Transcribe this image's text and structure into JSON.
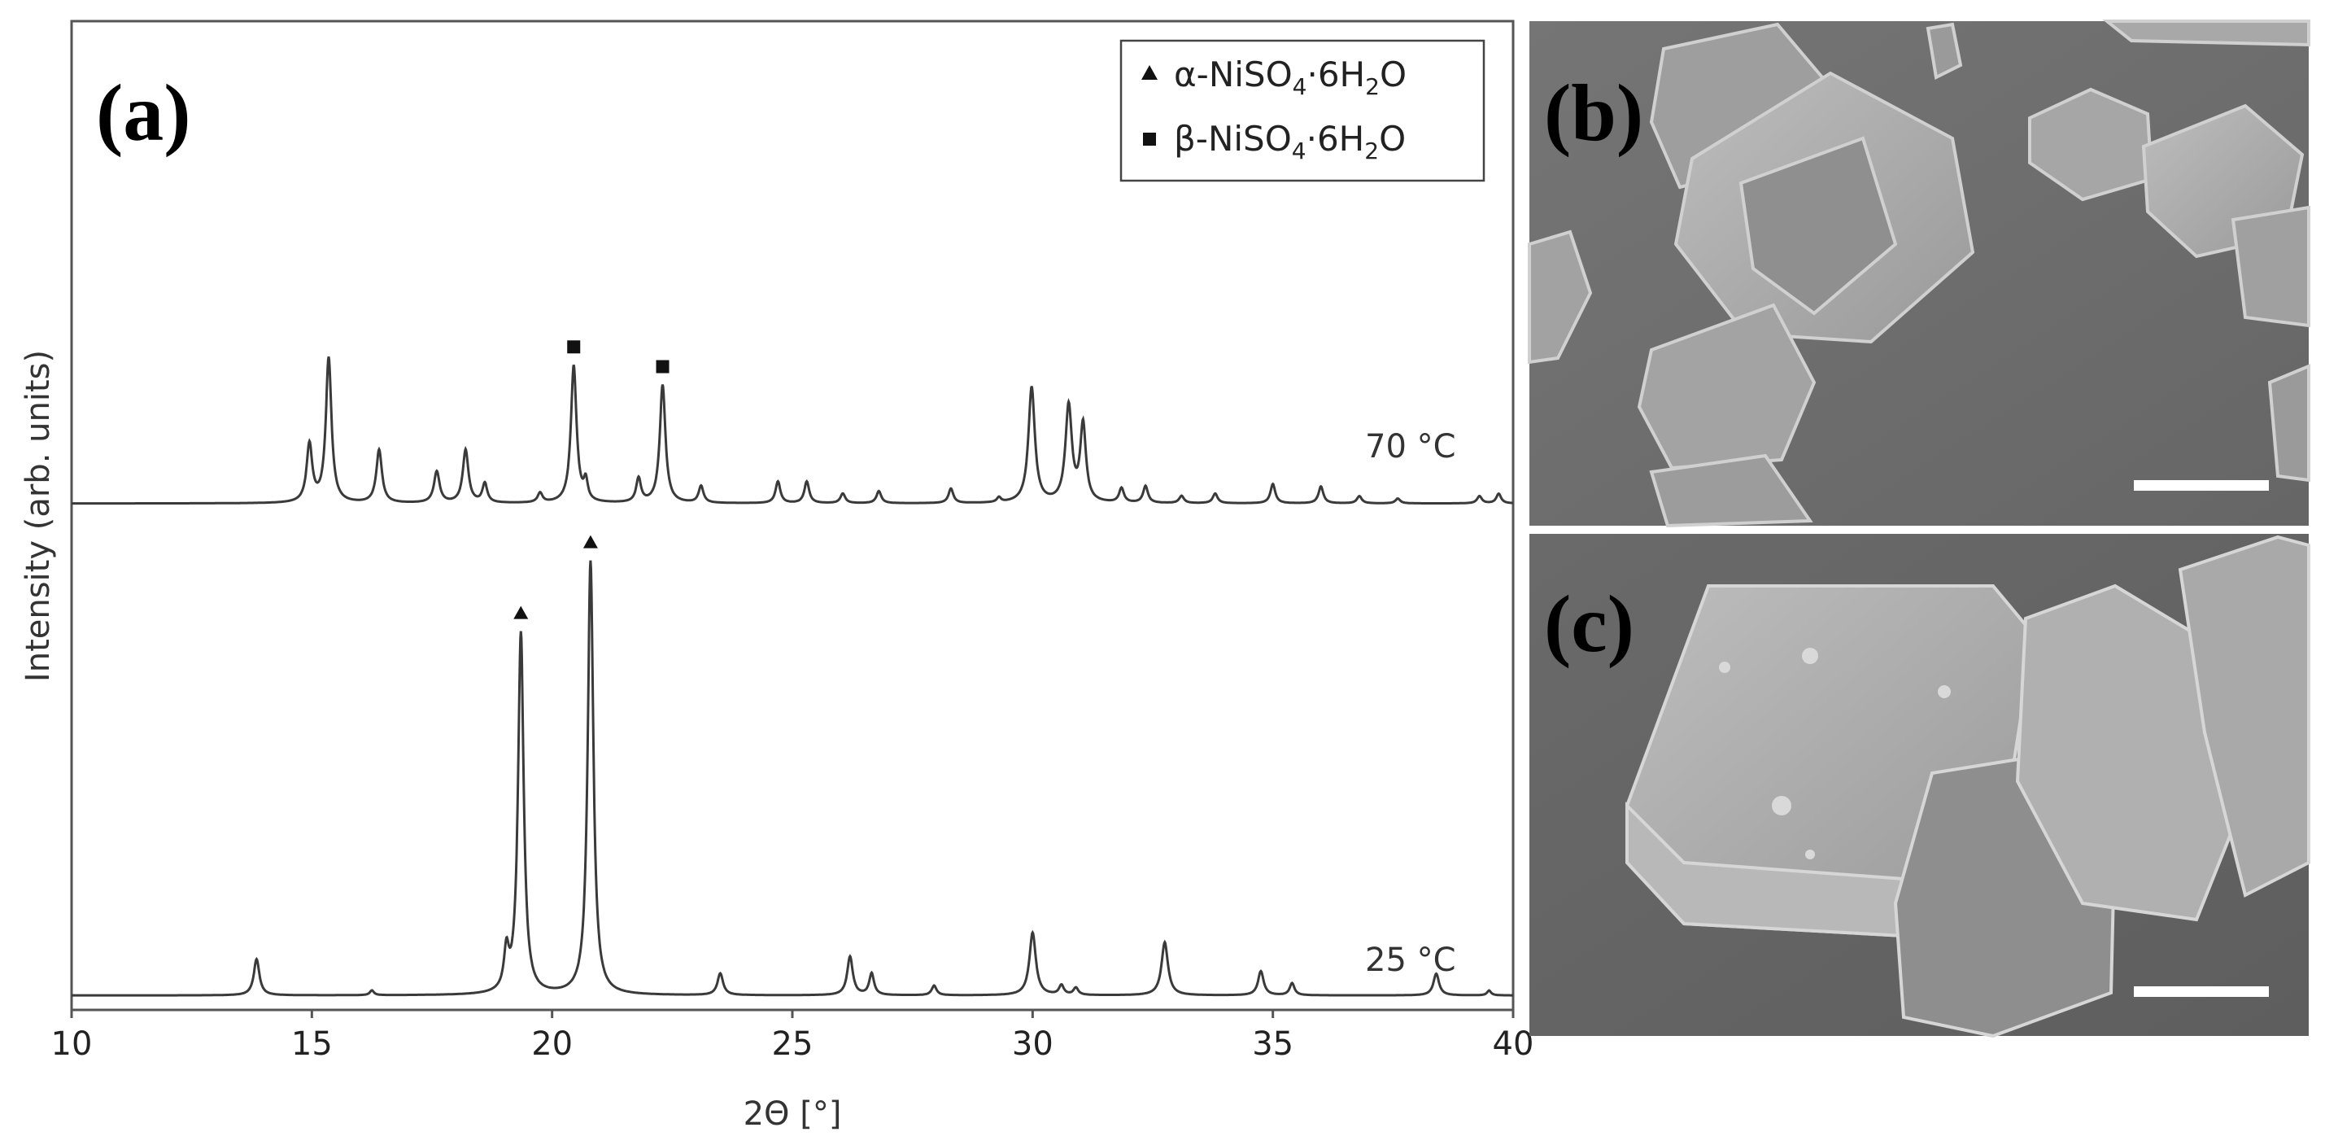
{
  "panels": {
    "a": "(a)",
    "b": "(b)",
    "c": "(c)"
  },
  "colors": {
    "trace": "#3a3a3a",
    "axis": "#555555",
    "sem_background": "#6e6e6e",
    "crystal_face": "#a9a9a9",
    "crystal_edge": "#d4d4d4",
    "scale_bar": "#ffffff"
  },
  "legend": {
    "position": "top-right",
    "entries": [
      {
        "marker": "triangle",
        "prefix": "α-NiSO",
        "sub": "4",
        "mid": "·6H",
        "sub2": "2",
        "suffix": "O"
      },
      {
        "marker": "square",
        "prefix": "β-NiSO",
        "sub": "4",
        "mid": "·6H",
        "sub2": "2",
        "suffix": "O"
      }
    ]
  },
  "chart_data": {
    "type": "line",
    "xlabel": "2Θ [°]",
    "ylabel": "Intensity (arb. units)",
    "xlim": [
      10,
      40
    ],
    "ylim": [
      0,
      2.05
    ],
    "x_ticks": [
      10,
      15,
      20,
      25,
      30,
      35,
      40
    ],
    "y_ticks": [],
    "grid": false,
    "series": [
      {
        "label": "25 °C",
        "baseline": 0.03,
        "peaks": [
          {
            "x": 13.85,
            "h": 0.075,
            "w": 0.07,
            "marker": ""
          },
          {
            "x": 16.25,
            "h": 0.01,
            "w": 0.05,
            "marker": ""
          },
          {
            "x": 19.05,
            "h": 0.08,
            "w": 0.06,
            "marker": ""
          },
          {
            "x": 19.35,
            "h": 0.75,
            "w": 0.07,
            "marker": "triangle"
          },
          {
            "x": 20.8,
            "h": 0.9,
            "w": 0.07,
            "marker": "triangle"
          },
          {
            "x": 23.5,
            "h": 0.045,
            "w": 0.07,
            "marker": ""
          },
          {
            "x": 26.2,
            "h": 0.08,
            "w": 0.07,
            "marker": ""
          },
          {
            "x": 26.65,
            "h": 0.045,
            "w": 0.06,
            "marker": ""
          },
          {
            "x": 27.95,
            "h": 0.02,
            "w": 0.06,
            "marker": ""
          },
          {
            "x": 30.0,
            "h": 0.13,
            "w": 0.08,
            "marker": ""
          },
          {
            "x": 30.6,
            "h": 0.02,
            "w": 0.06,
            "marker": ""
          },
          {
            "x": 30.9,
            "h": 0.015,
            "w": 0.06,
            "marker": ""
          },
          {
            "x": 32.75,
            "h": 0.11,
            "w": 0.08,
            "marker": ""
          },
          {
            "x": 34.75,
            "h": 0.05,
            "w": 0.07,
            "marker": ""
          },
          {
            "x": 35.4,
            "h": 0.025,
            "w": 0.06,
            "marker": ""
          },
          {
            "x": 38.4,
            "h": 0.045,
            "w": 0.07,
            "marker": ""
          },
          {
            "x": 39.5,
            "h": 0.01,
            "w": 0.05,
            "marker": ""
          }
        ]
      },
      {
        "label": "70 °C",
        "baseline": 1.05,
        "peaks": [
          {
            "x": 14.95,
            "h": 0.12,
            "w": 0.07,
            "marker": ""
          },
          {
            "x": 15.35,
            "h": 0.3,
            "w": 0.07,
            "marker": ""
          },
          {
            "x": 16.4,
            "h": 0.11,
            "w": 0.07,
            "marker": ""
          },
          {
            "x": 17.6,
            "h": 0.065,
            "w": 0.07,
            "marker": ""
          },
          {
            "x": 18.2,
            "h": 0.11,
            "w": 0.07,
            "marker": ""
          },
          {
            "x": 18.6,
            "h": 0.04,
            "w": 0.06,
            "marker": ""
          },
          {
            "x": 19.75,
            "h": 0.02,
            "w": 0.06,
            "marker": ""
          },
          {
            "x": 20.45,
            "h": 0.285,
            "w": 0.07,
            "marker": "square"
          },
          {
            "x": 20.7,
            "h": 0.04,
            "w": 0.05,
            "marker": ""
          },
          {
            "x": 21.8,
            "h": 0.05,
            "w": 0.06,
            "marker": ""
          },
          {
            "x": 22.3,
            "h": 0.245,
            "w": 0.07,
            "marker": "square"
          },
          {
            "x": 23.1,
            "h": 0.035,
            "w": 0.06,
            "marker": ""
          },
          {
            "x": 24.7,
            "h": 0.045,
            "w": 0.06,
            "marker": ""
          },
          {
            "x": 25.3,
            "h": 0.045,
            "w": 0.06,
            "marker": ""
          },
          {
            "x": 26.05,
            "h": 0.02,
            "w": 0.06,
            "marker": ""
          },
          {
            "x": 26.8,
            "h": 0.025,
            "w": 0.06,
            "marker": ""
          },
          {
            "x": 28.3,
            "h": 0.03,
            "w": 0.06,
            "marker": ""
          },
          {
            "x": 29.3,
            "h": 0.01,
            "w": 0.05,
            "marker": ""
          },
          {
            "x": 29.98,
            "h": 0.24,
            "w": 0.08,
            "marker": ""
          },
          {
            "x": 30.75,
            "h": 0.2,
            "w": 0.08,
            "marker": ""
          },
          {
            "x": 31.05,
            "h": 0.16,
            "w": 0.07,
            "marker": ""
          },
          {
            "x": 31.85,
            "h": 0.03,
            "w": 0.06,
            "marker": ""
          },
          {
            "x": 32.35,
            "h": 0.035,
            "w": 0.06,
            "marker": ""
          },
          {
            "x": 33.1,
            "h": 0.015,
            "w": 0.06,
            "marker": ""
          },
          {
            "x": 33.8,
            "h": 0.02,
            "w": 0.06,
            "marker": ""
          },
          {
            "x": 35.0,
            "h": 0.04,
            "w": 0.06,
            "marker": ""
          },
          {
            "x": 36.0,
            "h": 0.035,
            "w": 0.06,
            "marker": ""
          },
          {
            "x": 36.8,
            "h": 0.015,
            "w": 0.06,
            "marker": ""
          },
          {
            "x": 37.6,
            "h": 0.01,
            "w": 0.06,
            "marker": ""
          },
          {
            "x": 39.3,
            "h": 0.015,
            "w": 0.06,
            "marker": ""
          },
          {
            "x": 39.7,
            "h": 0.02,
            "w": 0.06,
            "marker": ""
          }
        ]
      }
    ]
  }
}
